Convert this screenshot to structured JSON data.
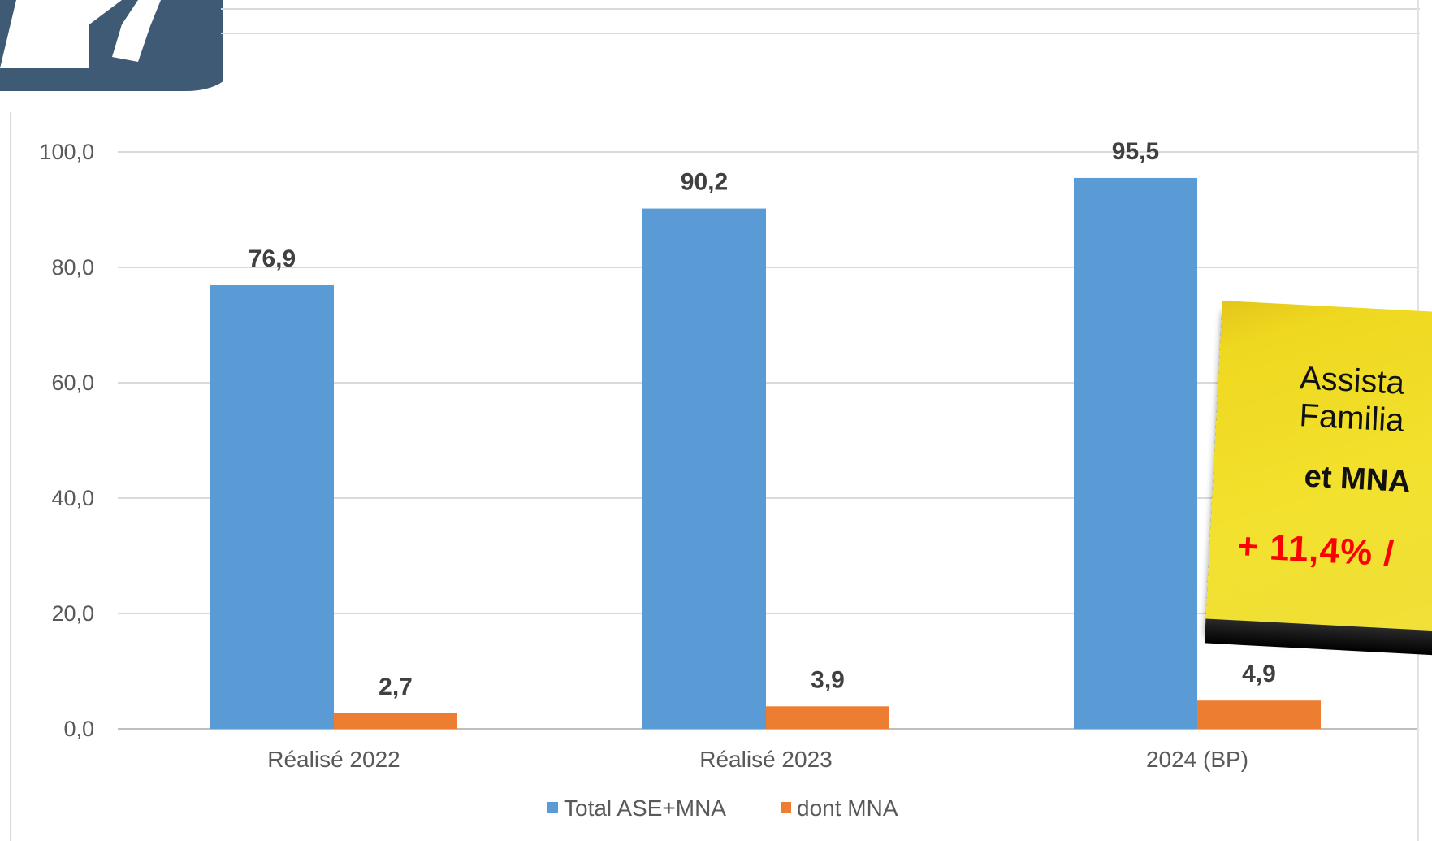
{
  "chart_data": {
    "type": "bar",
    "categories": [
      "Réalisé 2022",
      "Réalisé 2023",
      "2024 (BP)"
    ],
    "series": [
      {
        "name": "Total ASE+MNA",
        "values": [
          76.9,
          90.2,
          95.5
        ],
        "labels": [
          "76,9",
          "90,2",
          "95,5"
        ],
        "color": "#5b9bd5"
      },
      {
        "name": "dont MNA",
        "values": [
          2.7,
          3.9,
          4.9
        ],
        "labels": [
          "2,7",
          "3,9",
          "4,9"
        ],
        "color": "#ed7d31"
      }
    ],
    "ylim": [
      0,
      100
    ],
    "yticks": [
      0,
      20,
      40,
      60,
      80,
      100
    ],
    "ytick_labels": [
      "0,0",
      "20,0",
      "40,0",
      "60,0",
      "80,0",
      "100,0"
    ],
    "grid": true,
    "legend_position": "bottom"
  },
  "colors": {
    "logo": "#3f5a75",
    "gridline": "#d9d9d9",
    "sticky_note": "#f2e12d",
    "highlight_text": "#ff0000"
  },
  "sticky_note": {
    "line1": "Assista",
    "line2": "Familia",
    "line3": "et MNA",
    "line4": "+ 11,4% /"
  }
}
